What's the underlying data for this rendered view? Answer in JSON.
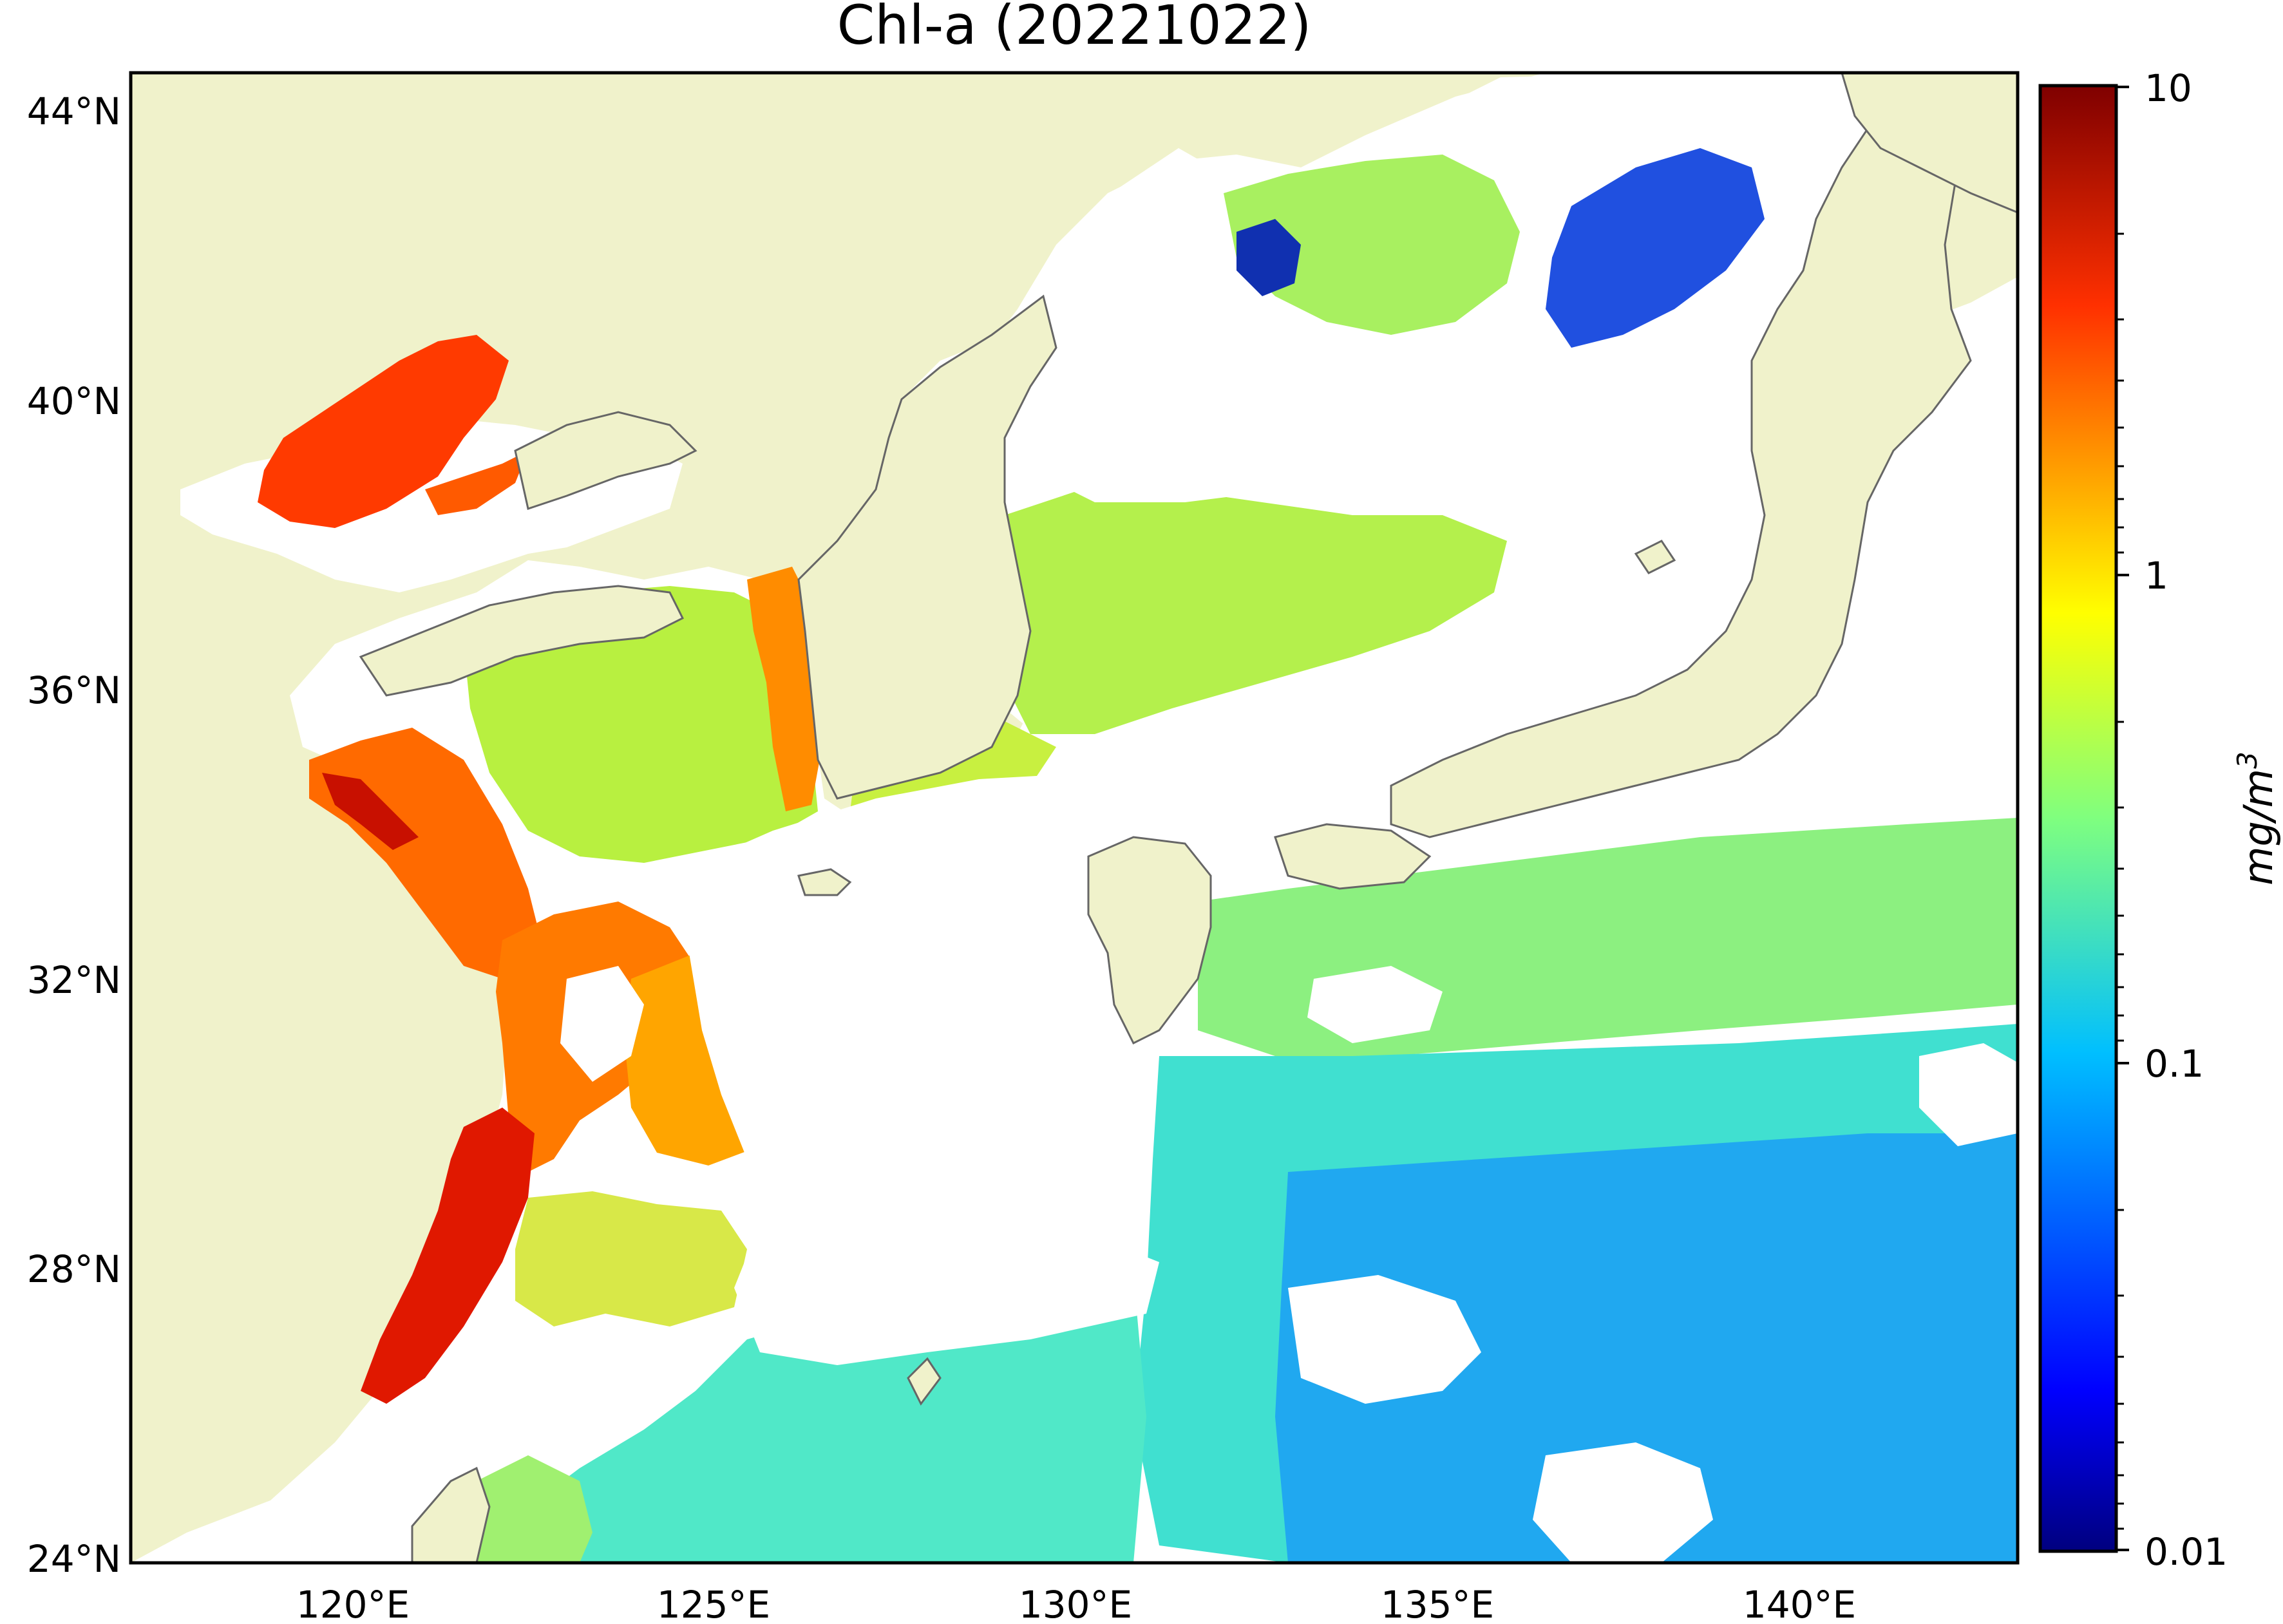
{
  "title": "Chl-a (20221022)",
  "colors": {
    "land": "#f0f2cb",
    "ocean_no_data": "#ffffff",
    "coastline": "#666666",
    "frame": "#000000",
    "colormap": [
      "#00007f",
      "#0000ff",
      "#007fff",
      "#00ffff",
      "#7fff7f",
      "#ffff00",
      "#ff7f00",
      "#ff0000",
      "#7f0000"
    ]
  },
  "map": {
    "lat_ticks": [
      "44°N",
      "40°N",
      "36°N",
      "32°N",
      "28°N",
      "24°N"
    ],
    "lon_ticks": [
      "120°E",
      "125°E",
      "130°E",
      "135°E",
      "140°E"
    ],
    "lat_range": [
      24,
      44.5
    ],
    "lon_range": [
      116.5,
      143
    ]
  },
  "colorbar": {
    "label": "mg/m3",
    "label_base": "mg/m",
    "label_exp": "3",
    "scale": "log",
    "range": [
      0.01,
      10
    ],
    "tick_labels": [
      "10",
      "1",
      "0.1",
      "0.01"
    ]
  }
}
